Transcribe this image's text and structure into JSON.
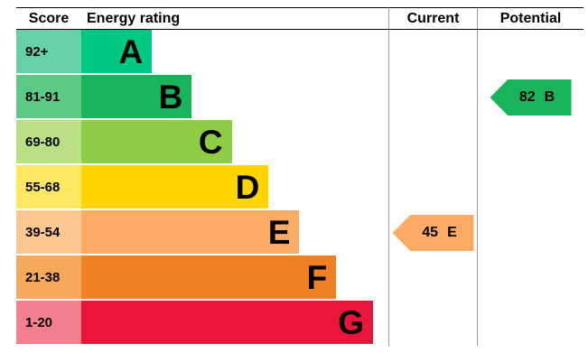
{
  "header": {
    "score": "Score",
    "energy_rating": "Energy rating",
    "current": "Current",
    "potential": "Potential"
  },
  "chart_data": {
    "type": "bar",
    "title": "Energy efficiency rating chart (EPC)",
    "bands": [
      {
        "score": "92+",
        "letter": "A",
        "bar_color": "#00c781",
        "score_color": "#66d0a7",
        "width_pct": 23
      },
      {
        "score": "81-91",
        "letter": "B",
        "bar_color": "#19b459",
        "score_color": "#5cc985",
        "width_pct": 36
      },
      {
        "score": "69-80",
        "letter": "C",
        "bar_color": "#8dce46",
        "score_color": "#bae086",
        "width_pct": 49
      },
      {
        "score": "55-68",
        "letter": "D",
        "bar_color": "#ffd500",
        "score_color": "#ffe663",
        "width_pct": 61
      },
      {
        "score": "39-54",
        "letter": "E",
        "bar_color": "#fcaa65",
        "score_color": "#fdc791",
        "width_pct": 71
      },
      {
        "score": "21-38",
        "letter": "F",
        "bar_color": "#ef8023",
        "score_color": "#f4a95b",
        "width_pct": 83
      },
      {
        "score": "1-20",
        "letter": "G",
        "bar_color": "#e9153b",
        "score_color": "#f2808f",
        "width_pct": 95
      }
    ],
    "current": {
      "value": "45",
      "letter": "E",
      "color": "#fcaa65"
    },
    "potential": {
      "value": "82",
      "letter": "B",
      "color": "#19b459"
    }
  }
}
